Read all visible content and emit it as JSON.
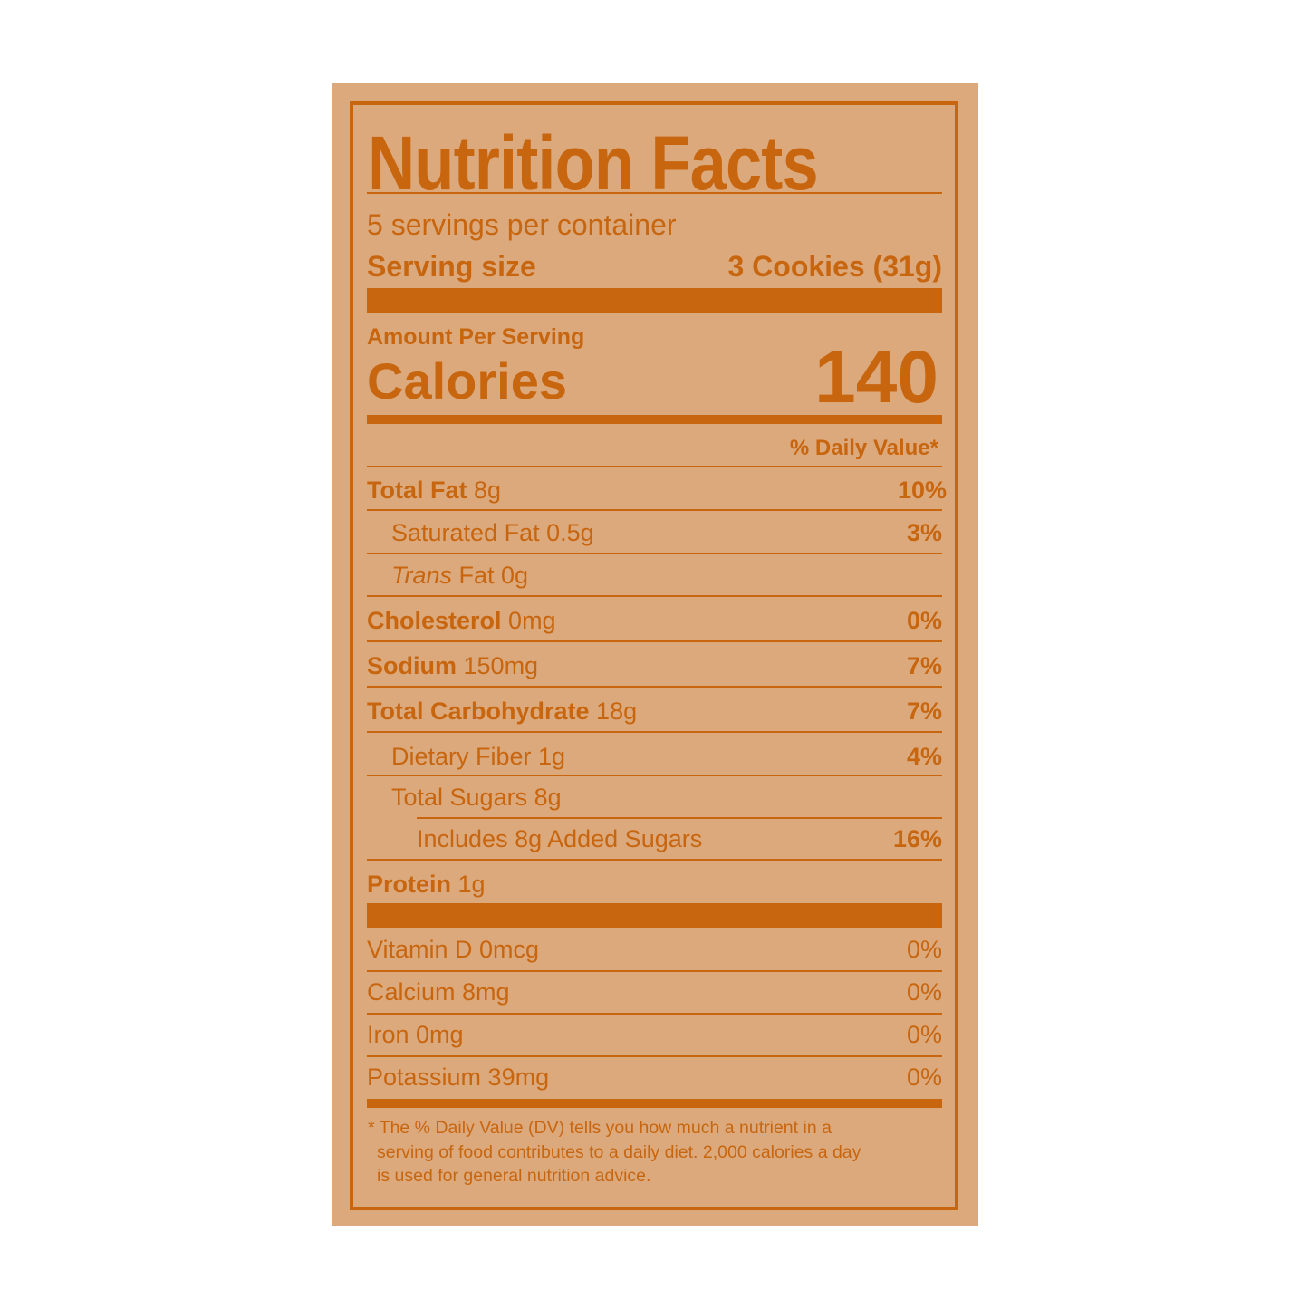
{
  "title": "Nutrition Facts",
  "servings_per_container": "5 servings per container",
  "serving_size_label": "Serving size",
  "serving_size_value": "3 Cookies (31g)",
  "amount_per_serving": "Amount Per Serving",
  "calories_label": "Calories",
  "calories_value": "140",
  "daily_value_header": "% Daily Value*",
  "nutrients": [
    {
      "name": "Total Fat",
      "amount": "8g",
      "dv": "10%"
    },
    {
      "name": "Saturated Fat 0.5g",
      "amount": "",
      "dv": "3%"
    },
    {
      "name_italic": "Trans",
      "name": " Fat 0g",
      "amount": "",
      "dv": ""
    },
    {
      "name": "Cholesterol",
      "amount": "0mg",
      "dv": "0%"
    },
    {
      "name": "Sodium",
      "amount": "150mg",
      "dv": "7%"
    },
    {
      "name": "Total Carbohydrate",
      "amount": "18g",
      "dv": "7%"
    },
    {
      "name": "Dietary Fiber 1g",
      "amount": "",
      "dv": "4%"
    },
    {
      "name": "Total Sugars 8g",
      "amount": "",
      "dv": ""
    },
    {
      "name": "Includes 8g Added Sugars",
      "amount": "",
      "dv": "16%"
    },
    {
      "name": "Protein",
      "amount": "1g",
      "dv": ""
    }
  ],
  "vitamins": [
    {
      "name": "Vitamin D 0mcg",
      "dv": "0%"
    },
    {
      "name": "Calcium 8mg",
      "dv": "0%"
    },
    {
      "name": "Iron 0mg",
      "dv": "0%"
    },
    {
      "name": "Potassium 39mg",
      "dv": "0%"
    }
  ],
  "footnote": [
    "* The % Daily Value (DV) tells you how much a nutrient in a",
    "serving of food contributes to a daily diet. 2,000 calories a day",
    "is used for general nutrition advice."
  ],
  "colors": {
    "ink": "#c8660f",
    "label_background": "#dca97c"
  }
}
